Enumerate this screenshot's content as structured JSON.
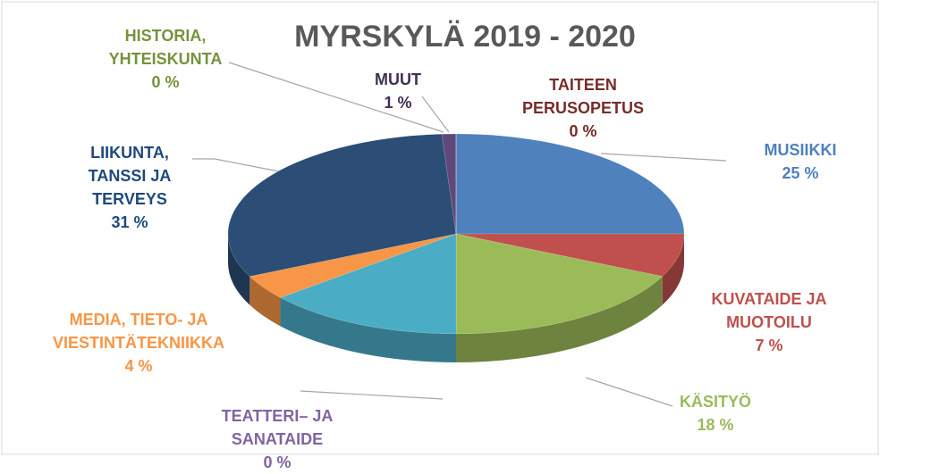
{
  "chart_data": {
    "type": "pie",
    "title": "MYRSKYLÄ 2019 - 2020",
    "categories": [
      "MUSIIKKI",
      "KUVATAIDE JA MUOTOILU",
      "KÄSITYÖ",
      "TEATTERI– JA SANATAIDE",
      null,
      "MEDIA, TIETO- JA VIESTINTÄTEKNIIKKA",
      "LIIKUNTA, TANSSI JA TERVEYS",
      "MUUT",
      "HISTORIA, YHTEISKUNTA",
      "TAITEEN PERUSOPETUS"
    ],
    "values": [
      25,
      7,
      18,
      0,
      14,
      4,
      31,
      1,
      0,
      0
    ],
    "value_labels": [
      "25 %",
      "7 %",
      "18 %",
      "0 %",
      null,
      "4 %",
      "31 %",
      "1 %",
      "0 %",
      "0 %"
    ],
    "colors": [
      "#4f81bd",
      "#c0504d",
      "#9bbb59",
      "#8064a2",
      "#4bacc6",
      "#f79646",
      "#2c4d75",
      "#5f497a",
      "#77933c",
      "#772c2a"
    ],
    "label_colors": [
      "#4f81bd",
      "#c0504d",
      "#9bbb59",
      "#8064a2",
      null,
      "#f79646",
      "#1f497d",
      "#403152",
      "#76923c",
      "#772c2a"
    ]
  }
}
